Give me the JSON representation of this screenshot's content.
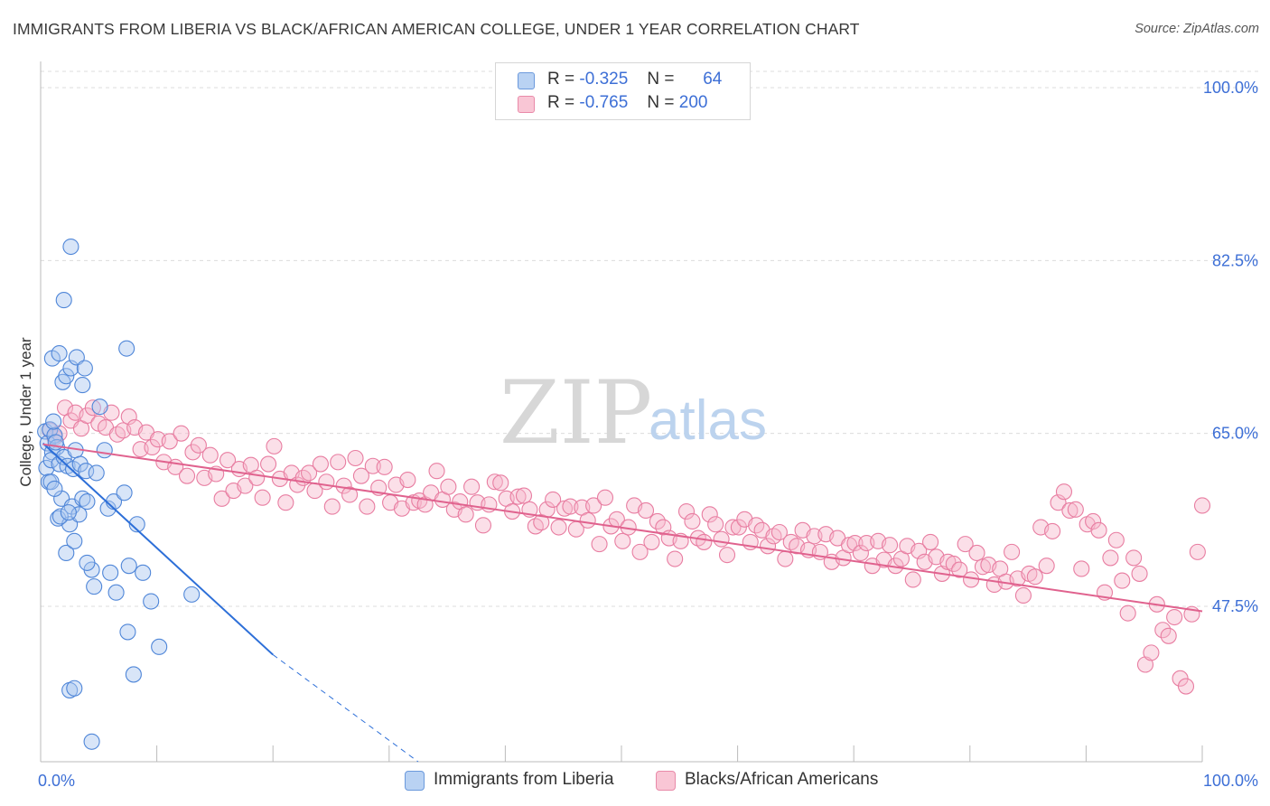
{
  "title": "IMMIGRANTS FROM LIBERIA VS BLACK/AFRICAN AMERICAN COLLEGE, UNDER 1 YEAR CORRELATION CHART",
  "source": "Source: ZipAtlas.com",
  "watermark": {
    "zip": "ZIP",
    "atlas": "atlas"
  },
  "legend": {
    "rows": [
      {
        "r_label": "R =",
        "r_value": "-0.325",
        "n_label": "N =",
        "n_value": "64"
      },
      {
        "r_label": "R =",
        "r_value": "-0.765",
        "n_label": "N =",
        "n_value": "200"
      }
    ]
  },
  "bottom_legend": [
    "Immigrants from Liberia",
    "Blacks/African Americans"
  ],
  "colors": {
    "blue_fill": "#a8c6f0",
    "blue_stroke": "#4f86d8",
    "blue_line": "#2d6fd8",
    "pink_fill": "#f6b8cb",
    "pink_stroke": "#e87da1",
    "pink_line": "#e0628e",
    "tick_label": "#3d6fd6",
    "grid": "#dcdcdc"
  },
  "chart_data": {
    "type": "scatter",
    "title": "IMMIGRANTS FROM LIBERIA VS BLACK/AFRICAN AMERICAN COLLEGE, UNDER 1 YEAR CORRELATION CHART",
    "xlabel": "",
    "ylabel": "College, Under 1 year",
    "xlim": [
      0,
      100
    ],
    "ylim": [
      32,
      102
    ],
    "x_tick_labels": [
      "0.0%",
      "100.0%"
    ],
    "y_ticks": [
      100.0,
      82.5,
      65.0,
      47.5
    ],
    "y_tick_labels": [
      "100.0%",
      "82.5%",
      "65.0%",
      "47.5%"
    ],
    "grid": true,
    "legend_position": "top-center",
    "series": [
      {
        "name": "Immigrants from Liberia",
        "r": -0.325,
        "n": 64,
        "trend": {
          "x": [
            0.2,
            20
          ],
          "y": [
            64.0,
            42.6
          ],
          "dashed_to": {
            "x": 32.5,
            "y": 29.2
          }
        },
        "points": [
          [
            0.4,
            65.2
          ],
          [
            0.6,
            64.0
          ],
          [
            0.8,
            65.4
          ],
          [
            1.0,
            63.1
          ],
          [
            1.2,
            64.8
          ],
          [
            0.5,
            61.5
          ],
          [
            0.7,
            60.1
          ],
          [
            1.4,
            63.6
          ],
          [
            1.1,
            66.2
          ],
          [
            0.9,
            62.3
          ],
          [
            1.6,
            61.9
          ],
          [
            1.3,
            64.1
          ],
          [
            2.0,
            62.6
          ],
          [
            1.8,
            58.4
          ],
          [
            2.3,
            61.7
          ],
          [
            3.0,
            63.3
          ],
          [
            1.5,
            56.4
          ],
          [
            2.7,
            57.6
          ],
          [
            2.5,
            55.8
          ],
          [
            3.3,
            56.8
          ],
          [
            3.6,
            58.4
          ],
          [
            2.2,
            52.9
          ],
          [
            2.9,
            54.1
          ],
          [
            2.8,
            61.4
          ],
          [
            3.4,
            61.9
          ],
          [
            4.0,
            58.1
          ],
          [
            3.9,
            61.2
          ],
          [
            4.8,
            61.0
          ],
          [
            5.1,
            67.7
          ],
          [
            5.5,
            63.3
          ],
          [
            5.8,
            57.4
          ],
          [
            6.3,
            58.1
          ],
          [
            6.0,
            50.9
          ],
          [
            7.2,
            59.0
          ],
          [
            7.6,
            51.6
          ],
          [
            8.3,
            55.8
          ],
          [
            8.8,
            50.9
          ],
          [
            9.5,
            48.0
          ],
          [
            10.2,
            43.4
          ],
          [
            13.0,
            48.7
          ],
          [
            1.0,
            72.6
          ],
          [
            1.6,
            73.1
          ],
          [
            1.9,
            70.2
          ],
          [
            2.2,
            70.8
          ],
          [
            2.6,
            71.6
          ],
          [
            3.1,
            72.7
          ],
          [
            3.6,
            69.9
          ],
          [
            3.8,
            71.6
          ],
          [
            2.0,
            78.5
          ],
          [
            2.6,
            83.9
          ],
          [
            7.4,
            73.6
          ],
          [
            0.9,
            60.1
          ],
          [
            1.2,
            59.4
          ],
          [
            1.7,
            56.6
          ],
          [
            2.4,
            57.0
          ],
          [
            4.4,
            51.2
          ],
          [
            4.0,
            51.9
          ],
          [
            4.6,
            49.5
          ],
          [
            6.5,
            48.9
          ],
          [
            7.5,
            44.9
          ],
          [
            2.5,
            39.0
          ],
          [
            2.9,
            39.2
          ],
          [
            4.4,
            33.8
          ],
          [
            8.0,
            40.6
          ]
        ]
      },
      {
        "name": "Blacks/African Americans",
        "r": -0.765,
        "n": 200,
        "trend": {
          "x": [
            0.2,
            100
          ],
          "y": [
            63.9,
            47.0
          ]
        },
        "points": [
          [
            0.8,
            65.3
          ],
          [
            1.2,
            64.6
          ],
          [
            1.6,
            65.0
          ],
          [
            2.1,
            67.6
          ],
          [
            2.6,
            66.3
          ],
          [
            3.0,
            67.1
          ],
          [
            3.5,
            65.5
          ],
          [
            4.0,
            66.8
          ],
          [
            4.5,
            67.6
          ],
          [
            5.0,
            66.0
          ],
          [
            5.6,
            65.6
          ],
          [
            6.1,
            67.1
          ],
          [
            6.6,
            64.9
          ],
          [
            7.1,
            65.3
          ],
          [
            7.6,
            66.7
          ],
          [
            8.1,
            65.6
          ],
          [
            8.6,
            63.4
          ],
          [
            9.1,
            65.1
          ],
          [
            9.6,
            63.6
          ],
          [
            10.1,
            64.4
          ],
          [
            10.6,
            62.1
          ],
          [
            11.1,
            64.2
          ],
          [
            11.6,
            61.6
          ],
          [
            12.1,
            65.0
          ],
          [
            12.6,
            60.7
          ],
          [
            13.1,
            63.1
          ],
          [
            13.6,
            63.8
          ],
          [
            14.1,
            60.5
          ],
          [
            14.6,
            62.8
          ],
          [
            15.1,
            60.9
          ],
          [
            15.6,
            58.4
          ],
          [
            16.1,
            62.3
          ],
          [
            16.6,
            59.2
          ],
          [
            17.1,
            61.4
          ],
          [
            17.6,
            59.7
          ],
          [
            18.1,
            61.8
          ],
          [
            18.6,
            60.5
          ],
          [
            19.1,
            58.5
          ],
          [
            19.6,
            61.9
          ],
          [
            20.1,
            63.7
          ],
          [
            20.6,
            60.4
          ],
          [
            21.1,
            58.0
          ],
          [
            21.6,
            61.0
          ],
          [
            22.1,
            59.8
          ],
          [
            22.6,
            60.5
          ],
          [
            23.1,
            61.0
          ],
          [
            23.6,
            59.2
          ],
          [
            24.1,
            61.9
          ],
          [
            24.6,
            60.1
          ],
          [
            25.1,
            57.6
          ],
          [
            25.6,
            62.1
          ],
          [
            26.1,
            59.7
          ],
          [
            26.6,
            58.8
          ],
          [
            27.1,
            62.5
          ],
          [
            27.6,
            60.7
          ],
          [
            28.1,
            57.6
          ],
          [
            28.6,
            61.7
          ],
          [
            29.1,
            59.5
          ],
          [
            29.6,
            61.6
          ],
          [
            30.1,
            58.0
          ],
          [
            30.6,
            59.8
          ],
          [
            31.1,
            57.4
          ],
          [
            31.6,
            60.3
          ],
          [
            32.1,
            58.0
          ],
          [
            32.6,
            58.2
          ],
          [
            33.1,
            57.8
          ],
          [
            33.6,
            59.0
          ],
          [
            34.1,
            61.2
          ],
          [
            34.6,
            58.3
          ],
          [
            35.1,
            59.6
          ],
          [
            35.6,
            57.3
          ],
          [
            36.1,
            58.1
          ],
          [
            36.6,
            56.8
          ],
          [
            37.1,
            59.6
          ],
          [
            37.6,
            58.0
          ],
          [
            38.1,
            55.7
          ],
          [
            38.6,
            57.8
          ],
          [
            39.1,
            60.1
          ],
          [
            39.6,
            60.0
          ],
          [
            40.1,
            58.4
          ],
          [
            40.6,
            57.1
          ],
          [
            41.1,
            58.6
          ],
          [
            41.6,
            58.7
          ],
          [
            42.1,
            57.3
          ],
          [
            42.6,
            55.6
          ],
          [
            43.1,
            56.0
          ],
          [
            43.6,
            57.3
          ],
          [
            44.1,
            58.3
          ],
          [
            44.6,
            55.5
          ],
          [
            45.1,
            57.4
          ],
          [
            45.6,
            57.6
          ],
          [
            46.1,
            55.3
          ],
          [
            46.6,
            57.5
          ],
          [
            47.1,
            56.2
          ],
          [
            47.6,
            57.7
          ],
          [
            48.1,
            53.8
          ],
          [
            48.6,
            58.5
          ],
          [
            49.1,
            55.6
          ],
          [
            49.6,
            56.3
          ],
          [
            50.1,
            54.1
          ],
          [
            50.6,
            55.5
          ],
          [
            51.1,
            57.7
          ],
          [
            51.6,
            53.0
          ],
          [
            52.1,
            57.2
          ],
          [
            52.6,
            54.0
          ],
          [
            53.1,
            56.1
          ],
          [
            53.6,
            55.5
          ],
          [
            54.1,
            54.4
          ],
          [
            54.6,
            52.3
          ],
          [
            55.1,
            54.1
          ],
          [
            55.6,
            57.1
          ],
          [
            56.1,
            56.1
          ],
          [
            56.6,
            54.4
          ],
          [
            57.1,
            54.0
          ],
          [
            57.6,
            56.8
          ],
          [
            58.1,
            55.8
          ],
          [
            58.6,
            54.3
          ],
          [
            59.1,
            52.7
          ],
          [
            59.6,
            55.5
          ],
          [
            60.1,
            55.5
          ],
          [
            60.6,
            56.3
          ],
          [
            61.1,
            54.0
          ],
          [
            61.6,
            55.7
          ],
          [
            62.1,
            55.2
          ],
          [
            62.6,
            53.6
          ],
          [
            63.1,
            54.6
          ],
          [
            63.6,
            55.0
          ],
          [
            64.1,
            52.3
          ],
          [
            64.6,
            54.0
          ],
          [
            65.1,
            53.6
          ],
          [
            65.6,
            55.2
          ],
          [
            66.1,
            53.2
          ],
          [
            66.6,
            54.6
          ],
          [
            67.1,
            53.0
          ],
          [
            67.6,
            54.8
          ],
          [
            68.1,
            52.0
          ],
          [
            68.6,
            54.4
          ],
          [
            69.1,
            52.4
          ],
          [
            69.6,
            53.7
          ],
          [
            70.1,
            53.9
          ],
          [
            70.6,
            52.9
          ],
          [
            71.1,
            53.9
          ],
          [
            71.6,
            51.6
          ],
          [
            72.1,
            54.1
          ],
          [
            72.6,
            52.2
          ],
          [
            73.1,
            53.7
          ],
          [
            73.6,
            51.6
          ],
          [
            74.1,
            52.3
          ],
          [
            74.6,
            53.6
          ],
          [
            75.1,
            50.2
          ],
          [
            75.6,
            53.1
          ],
          [
            76.1,
            52.0
          ],
          [
            76.6,
            54.0
          ],
          [
            77.1,
            52.5
          ],
          [
            77.6,
            50.8
          ],
          [
            78.1,
            52.0
          ],
          [
            78.6,
            51.8
          ],
          [
            79.1,
            51.2
          ],
          [
            79.6,
            53.8
          ],
          [
            80.1,
            50.2
          ],
          [
            80.6,
            52.9
          ],
          [
            81.1,
            51.5
          ],
          [
            81.6,
            51.7
          ],
          [
            82.1,
            49.7
          ],
          [
            82.6,
            51.3
          ],
          [
            83.1,
            50.0
          ],
          [
            83.6,
            53.0
          ],
          [
            84.1,
            50.3
          ],
          [
            84.6,
            48.6
          ],
          [
            85.1,
            50.8
          ],
          [
            85.6,
            50.5
          ],
          [
            86.1,
            55.5
          ],
          [
            86.6,
            51.6
          ],
          [
            87.1,
            55.1
          ],
          [
            87.6,
            58.0
          ],
          [
            88.1,
            59.1
          ],
          [
            88.6,
            57.2
          ],
          [
            89.1,
            57.3
          ],
          [
            89.6,
            51.3
          ],
          [
            90.1,
            55.8
          ],
          [
            90.6,
            56.1
          ],
          [
            91.1,
            55.2
          ],
          [
            91.6,
            48.9
          ],
          [
            92.1,
            52.4
          ],
          [
            92.6,
            54.2
          ],
          [
            93.1,
            50.1
          ],
          [
            93.6,
            46.8
          ],
          [
            94.1,
            52.4
          ],
          [
            94.6,
            50.8
          ],
          [
            95.1,
            41.6
          ],
          [
            95.6,
            42.8
          ],
          [
            96.1,
            47.7
          ],
          [
            96.6,
            45.1
          ],
          [
            97.1,
            44.5
          ],
          [
            97.6,
            46.4
          ],
          [
            98.1,
            40.2
          ],
          [
            98.6,
            39.4
          ],
          [
            99.1,
            46.7
          ],
          [
            99.6,
            53.0
          ],
          [
            100.0,
            57.7
          ]
        ]
      }
    ]
  }
}
